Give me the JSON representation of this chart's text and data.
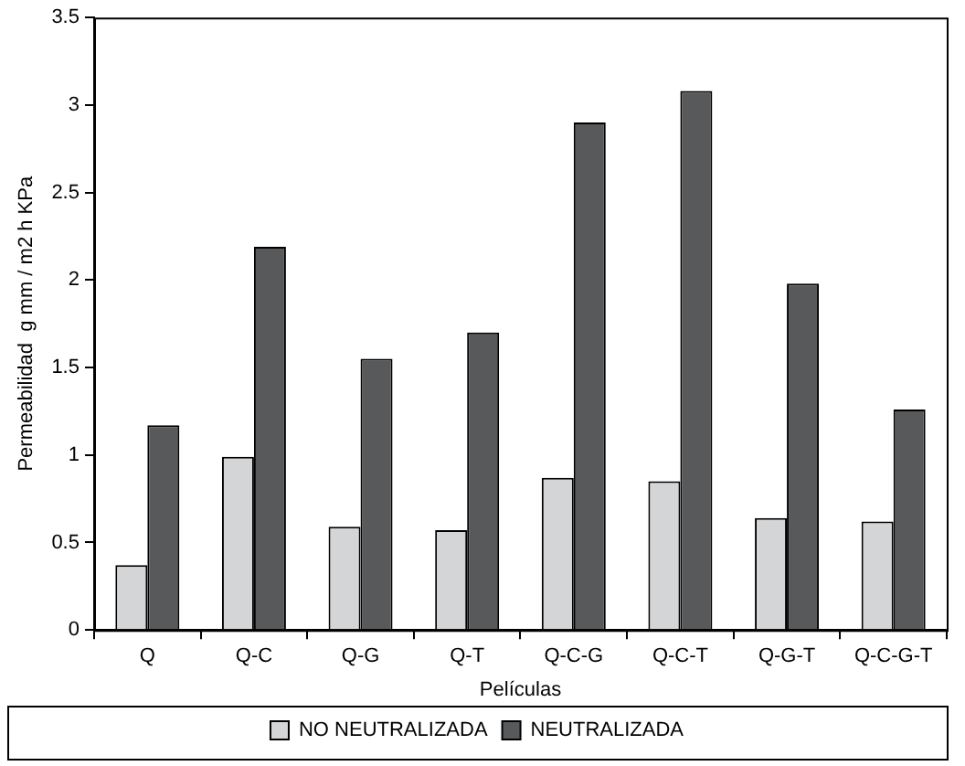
{
  "chart_data": {
    "type": "bar",
    "xlabel": "Películas",
    "ylabel": "Permeabilidad  g mm / m2 h KPa",
    "categories": [
      "Q",
      "Q-C",
      "Q-G",
      "Q-T",
      "Q-C-G",
      "Q-C-T",
      "Q-G-T",
      "Q-C-G-T"
    ],
    "series": [
      {
        "name": "NO NEUTRALIZADA",
        "color": "#d4d5d7",
        "values": [
          0.37,
          0.99,
          0.59,
          0.57,
          0.87,
          0.85,
          0.64,
          0.62
        ]
      },
      {
        "name": "NEUTRALIZADA",
        "color": "#58595b",
        "values": [
          1.17,
          2.19,
          1.55,
          1.7,
          2.9,
          3.08,
          1.98,
          1.26
        ]
      }
    ],
    "ylim": [
      0,
      3.5
    ],
    "yticks": [
      0,
      0.5,
      1,
      1.5,
      2,
      2.5,
      3,
      3.5
    ],
    "grid": false,
    "legend": "bottom"
  }
}
